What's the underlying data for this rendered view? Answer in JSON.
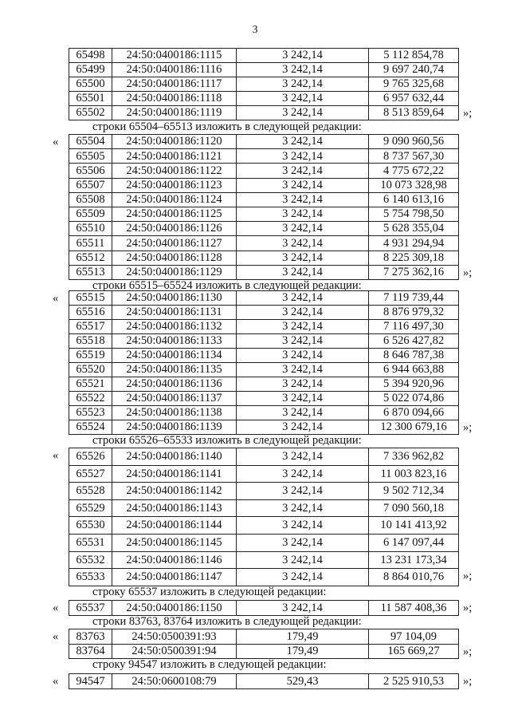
{
  "page_number": "3",
  "open_quote": "«",
  "close_quote": "»;",
  "blocks": [
    {
      "intro": "",
      "open": false,
      "rows": [
        [
          "65498",
          "24:50:0400186:1115",
          "3 242,14",
          "5 112 854,78"
        ],
        [
          "65499",
          "24:50:0400186:1116",
          "3 242,14",
          "9 697 240,74"
        ],
        [
          "65500",
          "24:50:0400186:1117",
          "3 242,14",
          "9 765 325,68"
        ],
        [
          "65501",
          "24:50:0400186:1118",
          "3 242,14",
          "6 957 632,44"
        ],
        [
          "65502",
          "24:50:0400186:1119",
          "3 242,14",
          "8 513 859,64"
        ]
      ]
    },
    {
      "intro": "строки 65504–65513 изложить в следующей редакции:",
      "open": true,
      "rows": [
        [
          "65504",
          "24:50:0400186:1120",
          "3 242,14",
          "9 090 960,56"
        ],
        [
          "65505",
          "24:50:0400186:1121",
          "3 242,14",
          "8 737 567,30"
        ],
        [
          "65506",
          "24:50:0400186:1122",
          "3 242,14",
          "4 775 672,22"
        ],
        [
          "65507",
          "24:50:0400186:1123",
          "3 242,14",
          "10 073 328,98"
        ],
        [
          "65508",
          "24:50:0400186:1124",
          "3 242,14",
          "6 140 613,16"
        ],
        [
          "65509",
          "24:50:0400186:1125",
          "3 242,14",
          "5 754 798,50"
        ],
        [
          "65510",
          "24:50:0400186:1126",
          "3 242,14",
          "5 628 355,04"
        ],
        [
          "65511",
          "24:50:0400186:1127",
          "3 242,14",
          "4 931 294,94"
        ],
        [
          "65512",
          "24:50:0400186:1128",
          "3 242,14",
          "8 225 309,18"
        ],
        [
          "65513",
          "24:50:0400186:1129",
          "3 242,14",
          "7 275 362,16"
        ]
      ]
    },
    {
      "intro": "строки 65515–65524 изложить в следующей редакции:",
      "open": true,
      "rows": [
        [
          "65515",
          "24:50:0400186:1130",
          "3 242,14",
          "7 119 739,44"
        ],
        [
          "65516",
          "24:50:0400186:1131",
          "3 242,14",
          "8 876 979,32"
        ],
        [
          "65517",
          "24:50:0400186:1132",
          "3 242,14",
          "7 116 497,30"
        ],
        [
          "65518",
          "24:50:0400186:1133",
          "3 242,14",
          "6 526 427,82"
        ],
        [
          "65519",
          "24:50:0400186:1134",
          "3 242,14",
          "8 646 787,38"
        ],
        [
          "65520",
          "24:50:0400186:1135",
          "3 242,14",
          "6 944 663,88"
        ],
        [
          "65521",
          "24:50:0400186:1136",
          "3 242,14",
          "5 394 920,96"
        ],
        [
          "65522",
          "24:50:0400186:1137",
          "3 242,14",
          "5 022 074,86"
        ],
        [
          "65523",
          "24:50:0400186:1138",
          "3 242,14",
          "6 870 094,66"
        ],
        [
          "65524",
          "24:50:0400186:1139",
          "3 242,14",
          "12 300 679,16"
        ]
      ]
    },
    {
      "intro": "строки 65526–65533 изложить в следующей редакции:",
      "open": true,
      "rows": [
        [
          "65526",
          "24:50:0400186:1140",
          "3 242,14",
          "7 336 962,82"
        ],
        [
          "65527",
          "24:50:0400186:1141",
          "3 242,14",
          "11 003 823,16"
        ],
        [
          "65528",
          "24:50:0400186:1142",
          "3 242,14",
          "9 502 712,34"
        ],
        [
          "65529",
          "24:50:0400186:1143",
          "3 242,14",
          "7 090 560,18"
        ],
        [
          "65530",
          "24:50:0400186:1144",
          "3 242,14",
          "10 141 413,92"
        ],
        [
          "65531",
          "24:50:0400186:1145",
          "3 242,14",
          "6 147 097,44"
        ],
        [
          "65532",
          "24:50:0400186:1146",
          "3 242,14",
          "13 231 173,34"
        ],
        [
          "65533",
          "24:50:0400186:1147",
          "3 242,14",
          "8 864 010,76"
        ]
      ]
    },
    {
      "intro": "строку 65537 изложить в следующей редакции:",
      "open": true,
      "rows": [
        [
          "65537",
          "24:50:0400186:1150",
          "3 242,14",
          "11 587 408,36"
        ]
      ]
    },
    {
      "intro": "строки 83763, 83764 изложить в следующей редакции:",
      "open": true,
      "rows": [
        [
          "83763",
          "24:50:0500391:93",
          "179,49",
          "97 104,09"
        ],
        [
          "83764",
          "24:50:0500391:94",
          "179,49",
          "165 669,27"
        ]
      ]
    },
    {
      "intro": "строку 94547 изложить в следующей редакции:",
      "open": true,
      "rows": [
        [
          "94547",
          "24:50:0600108:79",
          "529,43",
          "2 525 910,53"
        ]
      ]
    }
  ]
}
